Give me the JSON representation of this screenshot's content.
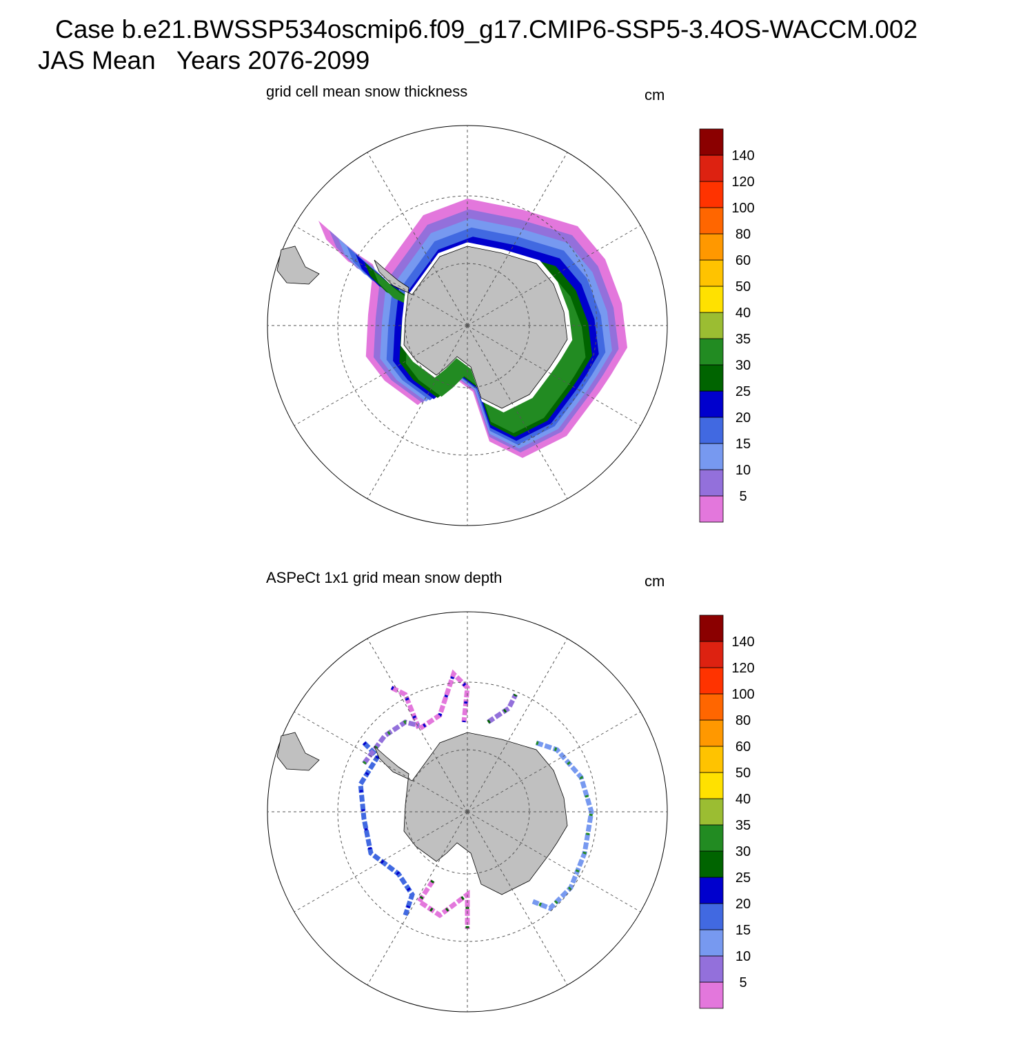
{
  "header": {
    "title": "Case b.e21.BWSSP534oscmip6.f09_g17.CMIP6-SSP5-3.4OS-WACCM.002",
    "subtitle": "JAS Mean   Years 2076-2099"
  },
  "panels": [
    {
      "title": "grid cell mean snow thickness",
      "units": "cm",
      "colorbar": {
        "levels": [
          5,
          10,
          15,
          20,
          25,
          30,
          35,
          40,
          50,
          60,
          80,
          100,
          120,
          140
        ],
        "colors": [
          "#e377dc",
          "#9370db",
          "#7799f0",
          "#4169e1",
          "#0000cd",
          "#006400",
          "#228b22",
          "#9bbd32",
          "#ffe100",
          "#ffc300",
          "#ff9800",
          "#ff6600",
          "#ff3300",
          "#dd2211",
          "#8b0000"
        ]
      }
    },
    {
      "title": "ASPeCt 1x1 grid mean snow depth",
      "units": "cm",
      "colorbar": {
        "levels": [
          5,
          10,
          15,
          20,
          25,
          30,
          35,
          40,
          50,
          60,
          80,
          100,
          120,
          140
        ],
        "colors": [
          "#e377dc",
          "#9370db",
          "#7799f0",
          "#4169e1",
          "#0000cd",
          "#006400",
          "#228b22",
          "#9bbd32",
          "#ffe100",
          "#ffc300",
          "#ff9800",
          "#ff6600",
          "#ff3300",
          "#dd2211",
          "#8b0000"
        ]
      }
    }
  ]
}
